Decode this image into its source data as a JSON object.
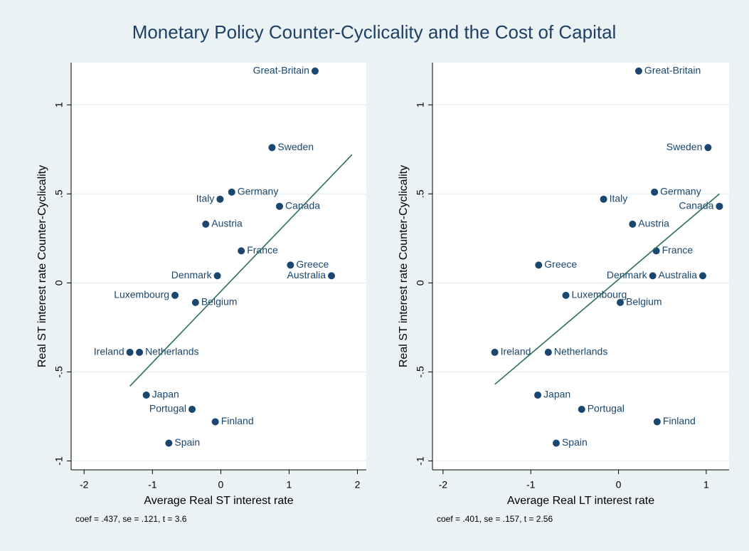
{
  "title": "Monetary Policy Counter-Cyclicality and the Cost of Capital",
  "chart_data": [
    {
      "type": "scatter",
      "x_label": "Average Real ST interest rate",
      "y_label": "Real ST interest rate Counter-Cyclicality",
      "note": "coef = .437, se = .121, t = 3.6",
      "color": "#1a476f",
      "fit_color": "#2d6e5e",
      "labels": [
        "Great-Britain",
        "Sweden",
        "Germany",
        "Italy",
        "Canada",
        "Austria",
        "France",
        "Greece",
        "Australia",
        "Denmark",
        "Luxembourg",
        "Belgium",
        "Ireland",
        "Netherlands",
        "Japan",
        "Portugal",
        "Finland",
        "Spain"
      ],
      "x": [
        1.38,
        0.75,
        0.16,
        -0.01,
        0.86,
        -0.22,
        0.3,
        1.02,
        1.62,
        -0.05,
        -0.67,
        -0.37,
        -1.33,
        -1.19,
        -1.09,
        -0.42,
        -0.08,
        -0.76
      ],
      "y": [
        1.19,
        0.76,
        0.51,
        0.47,
        0.43,
        0.33,
        0.18,
        0.1,
        0.04,
        0.04,
        -0.07,
        -0.11,
        -0.39,
        -0.39,
        -0.63,
        -0.71,
        -0.78,
        -0.9
      ],
      "fit": {
        "x": [
          -1.33,
          1.92
        ],
        "y": [
          -0.58,
          0.72
        ]
      },
      "xlim": [
        -2.19,
        2.13
      ],
      "ylim": [
        -1.05,
        1.237
      ],
      "xticks": [
        -2,
        -1,
        0,
        1,
        2
      ],
      "yticks": [
        -1,
        {
          "value": -0.5,
          "label": "-.5"
        },
        0,
        {
          "value": 0.5,
          "label": ".5"
        },
        1
      ],
      "grid": true
    },
    {
      "type": "scatter",
      "x_label": "Average Real LT interest rate",
      "y_label": "Real ST interest rate Counter-Cyclicality",
      "note": "coef = .401, se = .157, t = 2.56",
      "color": "#1a476f",
      "fit_color": "#2d6e5e",
      "labels": [
        "Great-Britain",
        "Sweden",
        "Germany",
        "Italy",
        "Canada",
        "Austria",
        "France",
        "Greece",
        "Australia",
        "Denmark",
        "Luxembourg",
        "Belgium",
        "Ireland",
        "Netherlands",
        "Japan",
        "Portugal",
        "Finland",
        "Spain"
      ],
      "x": [
        0.23,
        1.02,
        0.41,
        -0.17,
        1.15,
        0.16,
        0.43,
        -0.91,
        0.96,
        0.39,
        -0.6,
        0.02,
        -1.41,
        -0.8,
        -0.92,
        -0.42,
        0.44,
        -0.71
      ],
      "y": [
        1.19,
        0.76,
        0.51,
        0.47,
        0.43,
        0.33,
        0.18,
        0.1,
        0.04,
        0.04,
        -0.07,
        -0.11,
        -0.39,
        -0.39,
        -0.63,
        -0.71,
        -0.78,
        -0.9
      ],
      "fit": {
        "x": [
          -1.41,
          1.15
        ],
        "y": [
          -0.57,
          0.5
        ]
      },
      "xlim": [
        -2.12,
        1.26
      ],
      "ylim": [
        -1.05,
        1.237
      ],
      "xticks": [
        -2,
        -1,
        0,
        1
      ],
      "yticks": [
        -1,
        {
          "value": -0.5,
          "label": "-.5"
        },
        0,
        {
          "value": 0.5,
          "label": ".5"
        },
        1
      ],
      "grid": true
    }
  ]
}
